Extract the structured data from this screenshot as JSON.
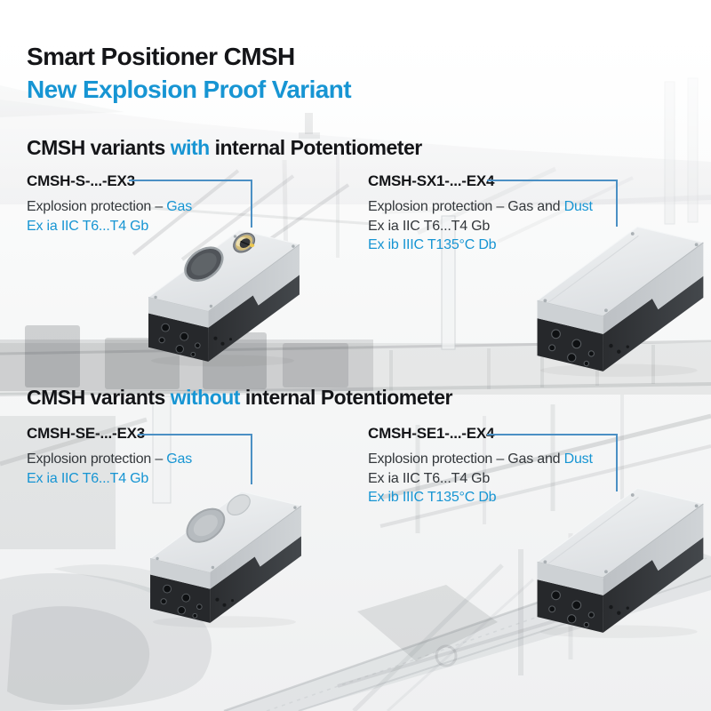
{
  "header": {
    "title": "Smart Positioner CMSH",
    "subtitle": "New Explosion Proof Variant"
  },
  "colors": {
    "accent_blue": "#1795d3",
    "connector_blue": "#4b90c4",
    "heading_dark": "#141518",
    "body_text": "#33373b"
  },
  "sections": [
    {
      "heading": [
        {
          "t": "CMSH variants "
        },
        {
          "t": "with",
          "blue": true
        },
        {
          "t": " internal Potentiometer"
        }
      ],
      "products": [
        {
          "model": "CMSH-S-...-EX3",
          "variant": "display-button",
          "specs": [
            [
              {
                "t": "Explosion protection – "
              },
              {
                "t": "Gas",
                "blue": true
              }
            ],
            [
              {
                "t": "Ex ia IIC T6...T4 Gb",
                "blue": true
              }
            ]
          ]
        },
        {
          "model": "CMSH-SX1-...-EX4",
          "variant": "plain",
          "specs": [
            [
              {
                "t": "Explosion protection – "
              },
              {
                "t": "Gas and "
              },
              {
                "t": "Dust",
                "blue": true
              }
            ],
            [
              {
                "t": "Ex ia IIC T6...T4 Gb"
              }
            ],
            [
              {
                "t": "Ex ib IIIC T135°C Db",
                "blue": true
              }
            ]
          ]
        }
      ]
    },
    {
      "heading": [
        {
          "t": "CMSH variants "
        },
        {
          "t": "without",
          "blue": true
        },
        {
          "t": " internal Potentiometer"
        }
      ],
      "products": [
        {
          "model": "CMSH-SE-...-EX3",
          "variant": "display",
          "specs": [
            [
              {
                "t": "Explosion protection – "
              },
              {
                "t": "Gas",
                "blue": true
              }
            ],
            [
              {
                "t": "Ex ia IIC T6...T4 Gb",
                "blue": true
              }
            ]
          ]
        },
        {
          "model": "CMSH-SE1-...-EX4",
          "variant": "plain",
          "specs": [
            [
              {
                "t": "Explosion protection – "
              },
              {
                "t": "Gas and "
              },
              {
                "t": "Dust",
                "blue": true
              }
            ],
            [
              {
                "t": "Ex ia IIC T6...T4 Gb"
              }
            ],
            [
              {
                "t": "Ex ib IIIC T135°C Db",
                "blue": true
              }
            ]
          ]
        }
      ]
    }
  ]
}
